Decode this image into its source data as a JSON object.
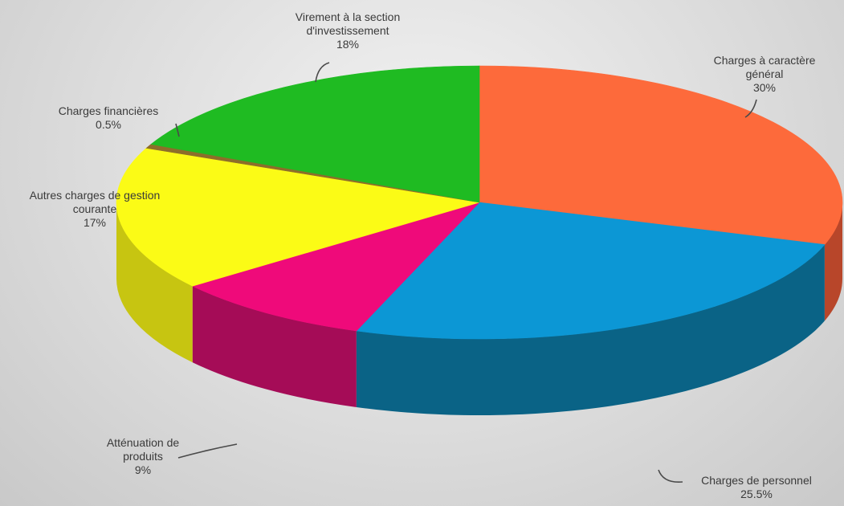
{
  "chart_data": {
    "type": "pie",
    "title": "",
    "slices": [
      {
        "label": "Charges à caractère général",
        "label_lines": [
          "Charges à caractère",
          "général"
        ],
        "pct_text": "30%",
        "value": 30,
        "color": "#fd6a3b",
        "side_color": "#b8462a"
      },
      {
        "label": "Charges de personnel",
        "label_lines": [
          "Charges de personnel"
        ],
        "pct_text": "25.5%",
        "value": 25.5,
        "color": "#0c97d5",
        "side_color": "#0a6386"
      },
      {
        "label": "Atténuation de produits",
        "label_lines": [
          "Atténuation de",
          "produits"
        ],
        "pct_text": "9%",
        "value": 9,
        "color": "#ef0a7a",
        "side_color": "#a50c57"
      },
      {
        "label": "Autres charges de gestion courante",
        "label_lines": [
          "Autres charges de gestion",
          "courante"
        ],
        "pct_text": "17%",
        "value": 17,
        "color": "#fbfb16",
        "side_color": "#c7c511"
      },
      {
        "label": "Charges financières",
        "label_lines": [
          "Charges financières"
        ],
        "pct_text": "0.5%",
        "value": 0.5,
        "color": "#8d6e2a",
        "side_color": "#6a521f"
      },
      {
        "label": "Virement à la section d'investissement",
        "label_lines": [
          "Virement à la section",
          "d'investissement"
        ],
        "pct_text": "18%",
        "value": 18,
        "color": "#1fbb22",
        "side_color": "#178c19"
      }
    ],
    "legend": "none"
  }
}
